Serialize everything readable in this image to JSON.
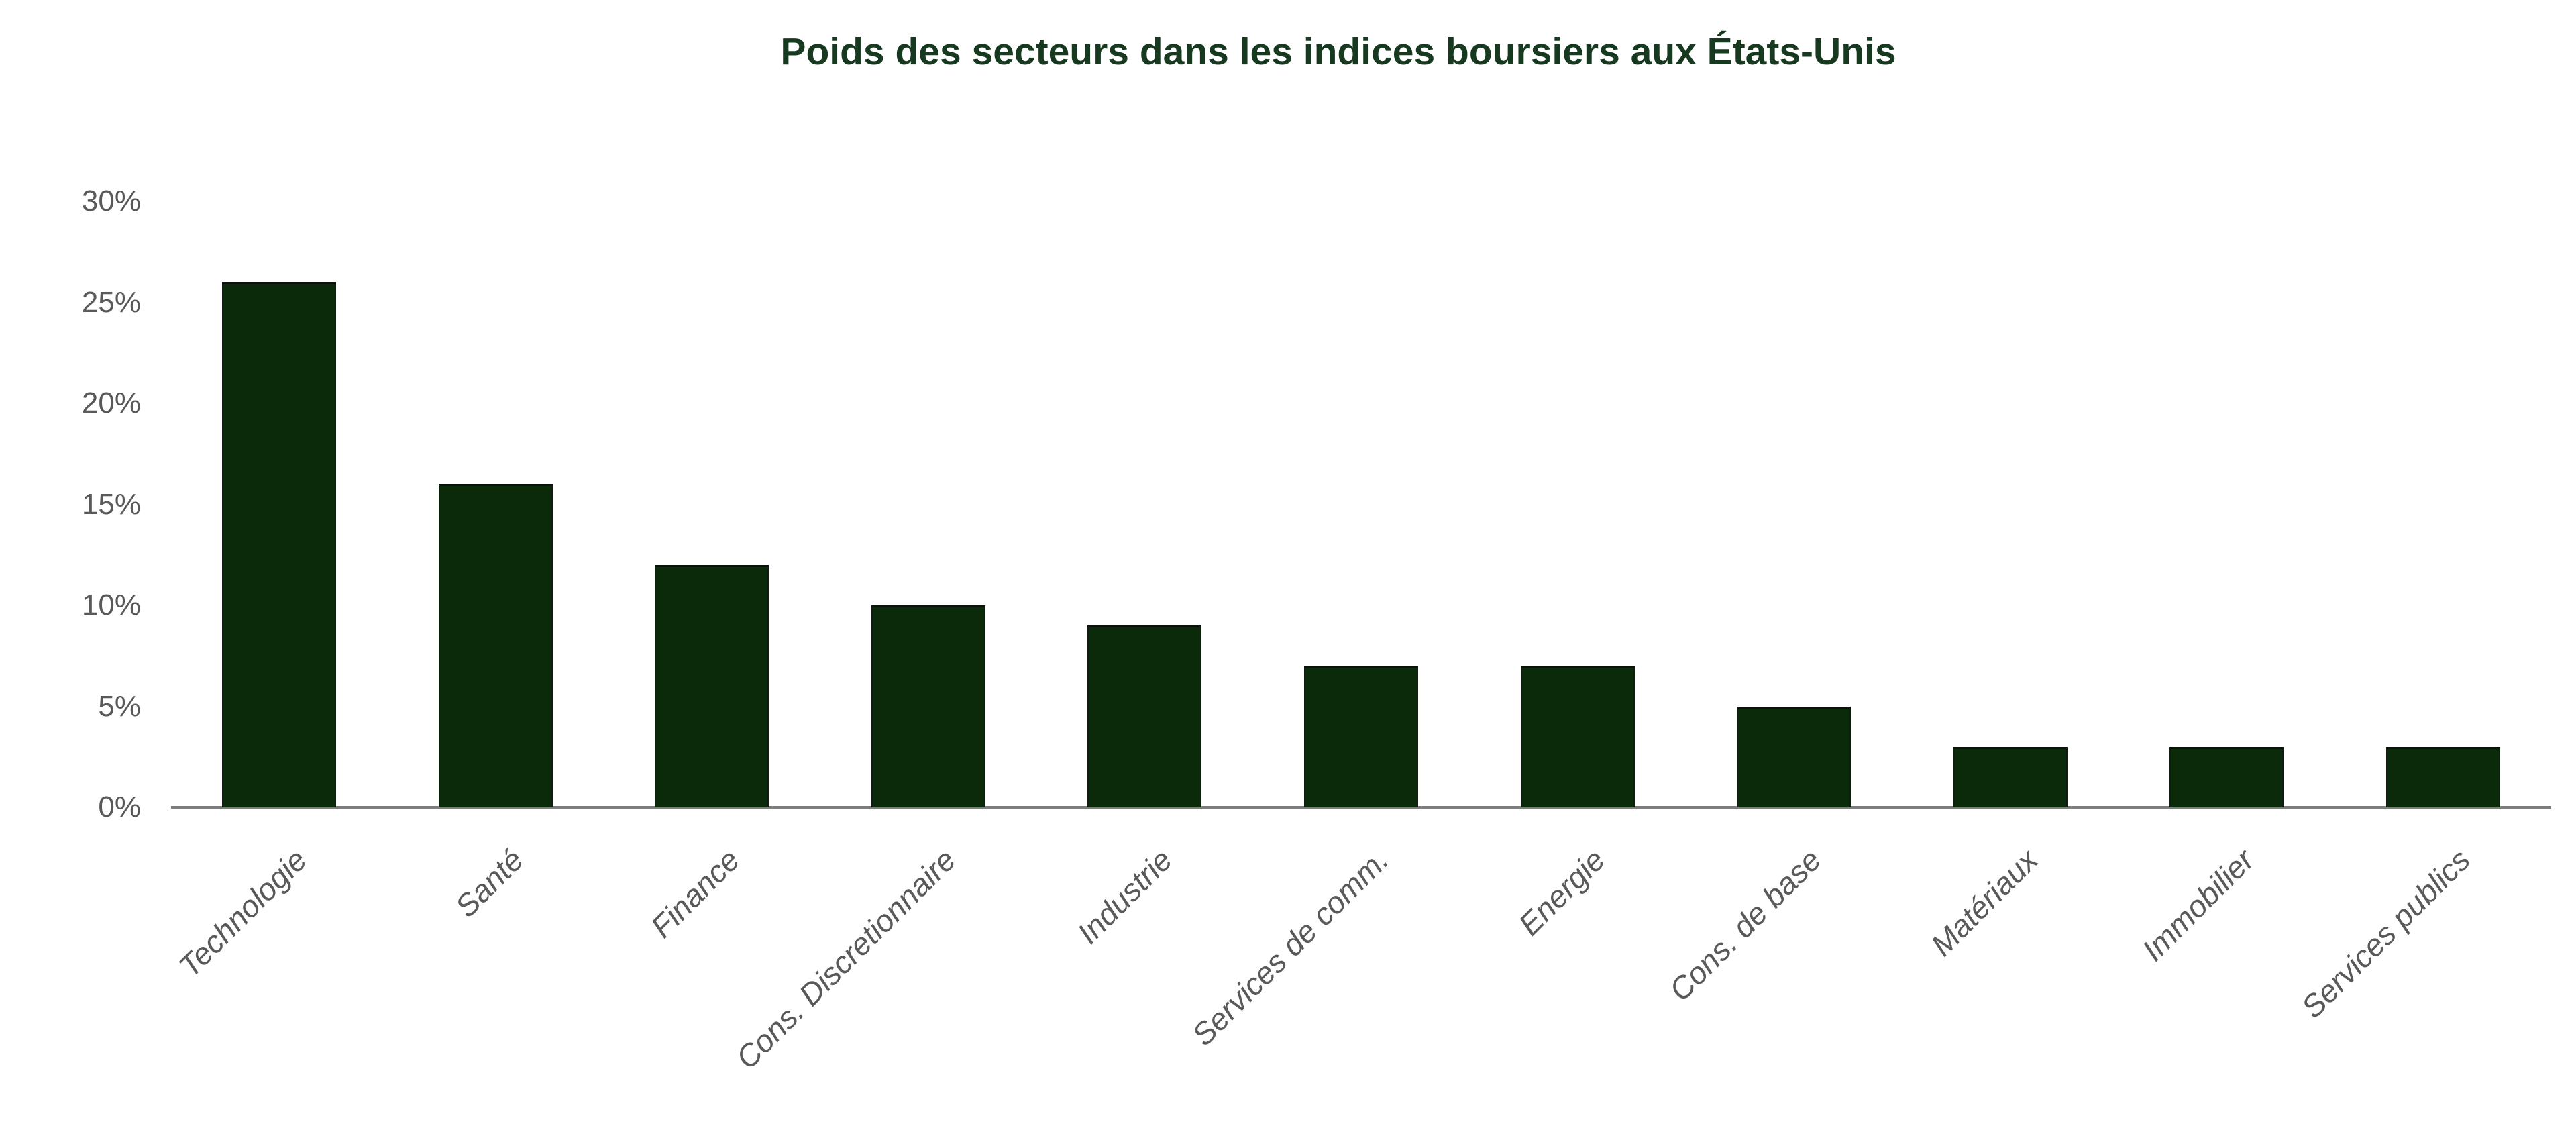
{
  "page": {
    "background": "#ffffff"
  },
  "chart_data": {
    "type": "bar",
    "title": "Poids des secteurs dans les indices boursiers aux États-Unis",
    "categories": [
      "Technologie",
      "Santé",
      "Finance",
      "Cons. Discretionnaire",
      "Industrie",
      "Services de comm.",
      "Energie",
      "Cons. de base",
      "Matériaux",
      "Immobilier",
      "Services publics"
    ],
    "values": [
      26,
      16,
      12,
      10,
      9,
      7,
      7,
      5,
      3,
      3,
      3
    ],
    "unit": "%",
    "xlabel": "",
    "ylabel": "",
    "ylim": [
      0,
      30
    ],
    "yticks": [
      0,
      5,
      10,
      15,
      20,
      25,
      30
    ],
    "ytick_labels": [
      "0%",
      "5%",
      "10%",
      "15%",
      "20%",
      "25%",
      "30%"
    ],
    "grid": false,
    "legend_position": "none",
    "x_tick_rotation_deg": 45,
    "colors": {
      "bar_fill": "#0a2a0a",
      "bar_edge": "#101c10",
      "title_text": "#16391f",
      "tick_text": "#595959",
      "axis_line": "#7f7f7f",
      "background": "#ffffff"
    }
  }
}
